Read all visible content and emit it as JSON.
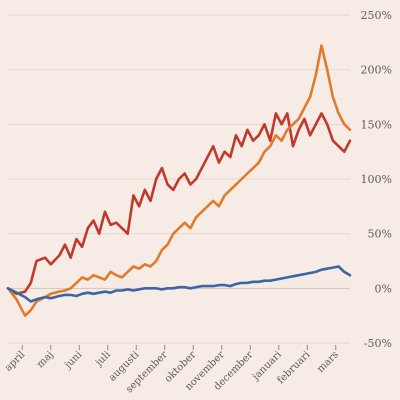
{
  "chart_data": {
    "type": "line",
    "ylim": [
      -50,
      250
    ],
    "yticks": [
      -50,
      0,
      50,
      100,
      150,
      200,
      250
    ],
    "ytick_labels": [
      "-50%",
      "0%",
      "50%",
      "100%",
      "150%",
      "200%",
      "250%"
    ],
    "y_axis_side": "right",
    "grid": "horizontal",
    "legend": "none",
    "xlim": [
      0,
      12
    ],
    "x_tick_positions": [
      0.5,
      1.5,
      2.5,
      3.5,
      4.5,
      5.5,
      6.5,
      7.5,
      8.5,
      9.5,
      10.5,
      11.5
    ],
    "x_tick_labels": [
      "april",
      "maj",
      "juni",
      "juli",
      "augusti",
      "september",
      "oktober",
      "november",
      "december",
      "januari",
      "februari",
      "mars"
    ],
    "series": [
      {
        "color": "#c0392b",
        "x": [
          0,
          0.3,
          0.6,
          0.8,
          1.0,
          1.3,
          1.5,
          1.8,
          2.0,
          2.2,
          2.4,
          2.6,
          2.8,
          3.0,
          3.2,
          3.4,
          3.6,
          3.8,
          4.0,
          4.2,
          4.4,
          4.6,
          4.8,
          5.0,
          5.2,
          5.4,
          5.6,
          5.8,
          6.0,
          6.2,
          6.4,
          6.6,
          6.8,
          7.0,
          7.2,
          7.4,
          7.6,
          7.8,
          8.0,
          8.2,
          8.4,
          8.6,
          8.8,
          9.0,
          9.2,
          9.4,
          9.6,
          9.8,
          10.0,
          10.2,
          10.4,
          10.6,
          10.8,
          11.0,
          11.2,
          11.4,
          11.6,
          11.8,
          12.0
        ],
        "values": [
          0,
          -5,
          -3,
          5,
          25,
          28,
          22,
          30,
          40,
          28,
          45,
          38,
          55,
          62,
          50,
          70,
          58,
          60,
          55,
          50,
          85,
          75,
          90,
          80,
          100,
          110,
          95,
          90,
          100,
          105,
          95,
          100,
          110,
          120,
          130,
          115,
          125,
          120,
          140,
          130,
          145,
          135,
          140,
          150,
          135,
          160,
          150,
          160,
          130,
          145,
          155,
          140,
          150,
          160,
          150,
          135,
          130,
          125,
          135
        ]
      },
      {
        "color": "#e07b2e",
        "x": [
          0,
          0.3,
          0.6,
          0.8,
          1.0,
          1.3,
          1.5,
          1.8,
          2.0,
          2.2,
          2.4,
          2.6,
          2.8,
          3.0,
          3.2,
          3.4,
          3.6,
          3.8,
          4.0,
          4.2,
          4.4,
          4.6,
          4.8,
          5.0,
          5.2,
          5.4,
          5.6,
          5.8,
          6.0,
          6.2,
          6.4,
          6.6,
          6.8,
          7.0,
          7.2,
          7.4,
          7.6,
          7.8,
          8.0,
          8.2,
          8.4,
          8.6,
          8.8,
          9.0,
          9.2,
          9.4,
          9.6,
          9.8,
          10.0,
          10.2,
          10.4,
          10.6,
          10.8,
          11.0,
          11.2,
          11.4,
          11.6,
          11.8,
          12.0
        ],
        "values": [
          0,
          -10,
          -25,
          -20,
          -12,
          -8,
          -5,
          -3,
          -2,
          0,
          5,
          10,
          8,
          12,
          10,
          8,
          15,
          12,
          10,
          15,
          20,
          18,
          22,
          20,
          25,
          35,
          40,
          50,
          55,
          60,
          55,
          65,
          70,
          75,
          80,
          75,
          85,
          90,
          95,
          100,
          105,
          110,
          115,
          125,
          130,
          140,
          135,
          145,
          150,
          155,
          165,
          175,
          195,
          222,
          200,
          175,
          160,
          150,
          145
        ]
      },
      {
        "color": "#3a66a8",
        "x": [
          0,
          0.3,
          0.6,
          0.8,
          1.0,
          1.3,
          1.5,
          1.8,
          2.0,
          2.2,
          2.4,
          2.6,
          2.8,
          3.0,
          3.2,
          3.4,
          3.6,
          3.8,
          4.0,
          4.2,
          4.4,
          4.6,
          4.8,
          5.0,
          5.2,
          5.4,
          5.6,
          5.8,
          6.0,
          6.2,
          6.4,
          6.6,
          6.8,
          7.0,
          7.2,
          7.4,
          7.6,
          7.8,
          8.0,
          8.2,
          8.4,
          8.6,
          8.8,
          9.0,
          9.2,
          9.4,
          9.6,
          9.8,
          10.0,
          10.2,
          10.4,
          10.6,
          10.8,
          11.0,
          11.2,
          11.4,
          11.6,
          11.8,
          12.0
        ],
        "values": [
          0,
          -4,
          -8,
          -12,
          -10,
          -8,
          -9,
          -7,
          -6,
          -6,
          -7,
          -5,
          -4,
          -5,
          -4,
          -3,
          -4,
          -2,
          -2,
          -1,
          -2,
          -1,
          0,
          0,
          0,
          -1,
          0,
          0,
          1,
          1,
          0,
          1,
          2,
          2,
          2,
          3,
          3,
          2,
          4,
          5,
          5,
          6,
          6,
          7,
          7,
          8,
          9,
          10,
          11,
          12,
          13,
          14,
          15,
          17,
          18,
          19,
          20,
          15,
          12
        ]
      }
    ]
  }
}
